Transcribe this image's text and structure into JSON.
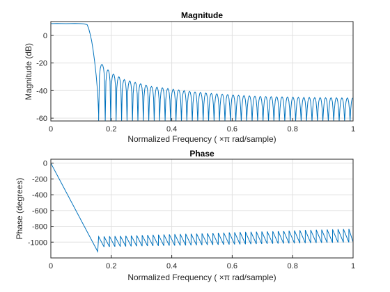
{
  "chart_data": [
    {
      "type": "line",
      "title": "Magnitude",
      "xlabel": "Normalized  Frequency    ( ×π  rad/sample)",
      "ylabel": "Magnitude (dB)",
      "xlim": [
        0,
        1
      ],
      "ylim": [
        -62,
        10
      ],
      "xticks": [
        0,
        0.2,
        0.4,
        0.6,
        0.8,
        1
      ],
      "xtick_labels": [
        "0",
        "0.2",
        "0.4",
        "0.6",
        "0.8",
        "1"
      ],
      "yticks": [
        0,
        -20,
        -40,
        -60
      ],
      "ytick_labels": [
        "0",
        "-20",
        "-40",
        "-60"
      ],
      "grid": true,
      "series": [
        {
          "color": "#0072bd",
          "passband": {
            "x": [
              0,
              0.02,
              0.05,
              0.08,
              0.1,
              0.11,
              0.12
            ],
            "y": [
              8.5,
              8.6,
              8.5,
              8.6,
              8.5,
              8.3,
              7.8
            ]
          },
          "transition": {
            "x": [
              0.12,
              0.125,
              0.13,
              0.135,
              0.14,
              0.145,
              0.15,
              0.155,
              0.158
            ],
            "y": [
              7.8,
              5,
              1,
              -4,
              -11,
              -19,
              -29,
              -42,
              -57
            ]
          },
          "sidelobe_nulls_x": [
            0.158,
            0.18,
            0.198,
            0.216,
            0.234,
            0.252,
            0.27,
            0.288,
            0.306,
            0.324,
            0.342,
            0.36,
            0.378,
            0.396,
            0.414,
            0.432,
            0.45,
            0.468,
            0.486,
            0.504,
            0.522,
            0.54,
            0.558,
            0.576,
            0.594,
            0.612,
            0.63,
            0.648,
            0.666,
            0.684,
            0.702,
            0.72,
            0.738,
            0.756,
            0.774,
            0.792,
            0.81,
            0.828,
            0.846,
            0.864,
            0.882,
            0.9,
            0.918,
            0.936,
            0.954,
            0.972,
            0.99
          ],
          "sidelobe_peaks_db": [
            -21,
            -25,
            -28,
            -30,
            -32,
            -33,
            -34,
            -35,
            -36,
            -37,
            -37.5,
            -38,
            -38.5,
            -39,
            -39.5,
            -40,
            -40.5,
            -41,
            -41.3,
            -41.7,
            -42,
            -42.3,
            -42.6,
            -42.9,
            -43.2,
            -43.4,
            -43.6,
            -43.8,
            -44,
            -44.2,
            -44.3,
            -44.4,
            -44.5,
            -44.6,
            -44.7,
            -44.8,
            -44.9,
            -45,
            -45,
            -45.1,
            -45.1,
            -45.2,
            -45.2,
            -45.2,
            -45.3,
            -45.3
          ],
          "null_floor_db": -62
        }
      ]
    },
    {
      "type": "line",
      "title": "Phase",
      "xlabel": "Normalized  Frequency    ( ×π  rad/sample)",
      "ylabel": "Phase (degrees)",
      "xlim": [
        0,
        1
      ],
      "ylim": [
        -1200,
        50
      ],
      "xticks": [
        0,
        0.2,
        0.4,
        0.6,
        0.8,
        1
      ],
      "xtick_labels": [
        "0",
        "0.2",
        "0.4",
        "0.6",
        "0.8",
        "1"
      ],
      "yticks": [
        0,
        -200,
        -400,
        -600,
        -800,
        -1000
      ],
      "ytick_labels": [
        "0",
        "-200",
        "-400",
        "-600",
        "-800",
        "-1000"
      ],
      "grid": true,
      "series": [
        {
          "color": "#0072bd",
          "linear": {
            "x": [
              0,
              0.155
            ],
            "y": [
              0,
              -1120
            ]
          },
          "sawtooth": {
            "start_x": 0.158,
            "period": 0.018,
            "low_start": -1060,
            "low_end": -1000,
            "high_start": -930,
            "high_end": -830
          }
        }
      ]
    }
  ]
}
